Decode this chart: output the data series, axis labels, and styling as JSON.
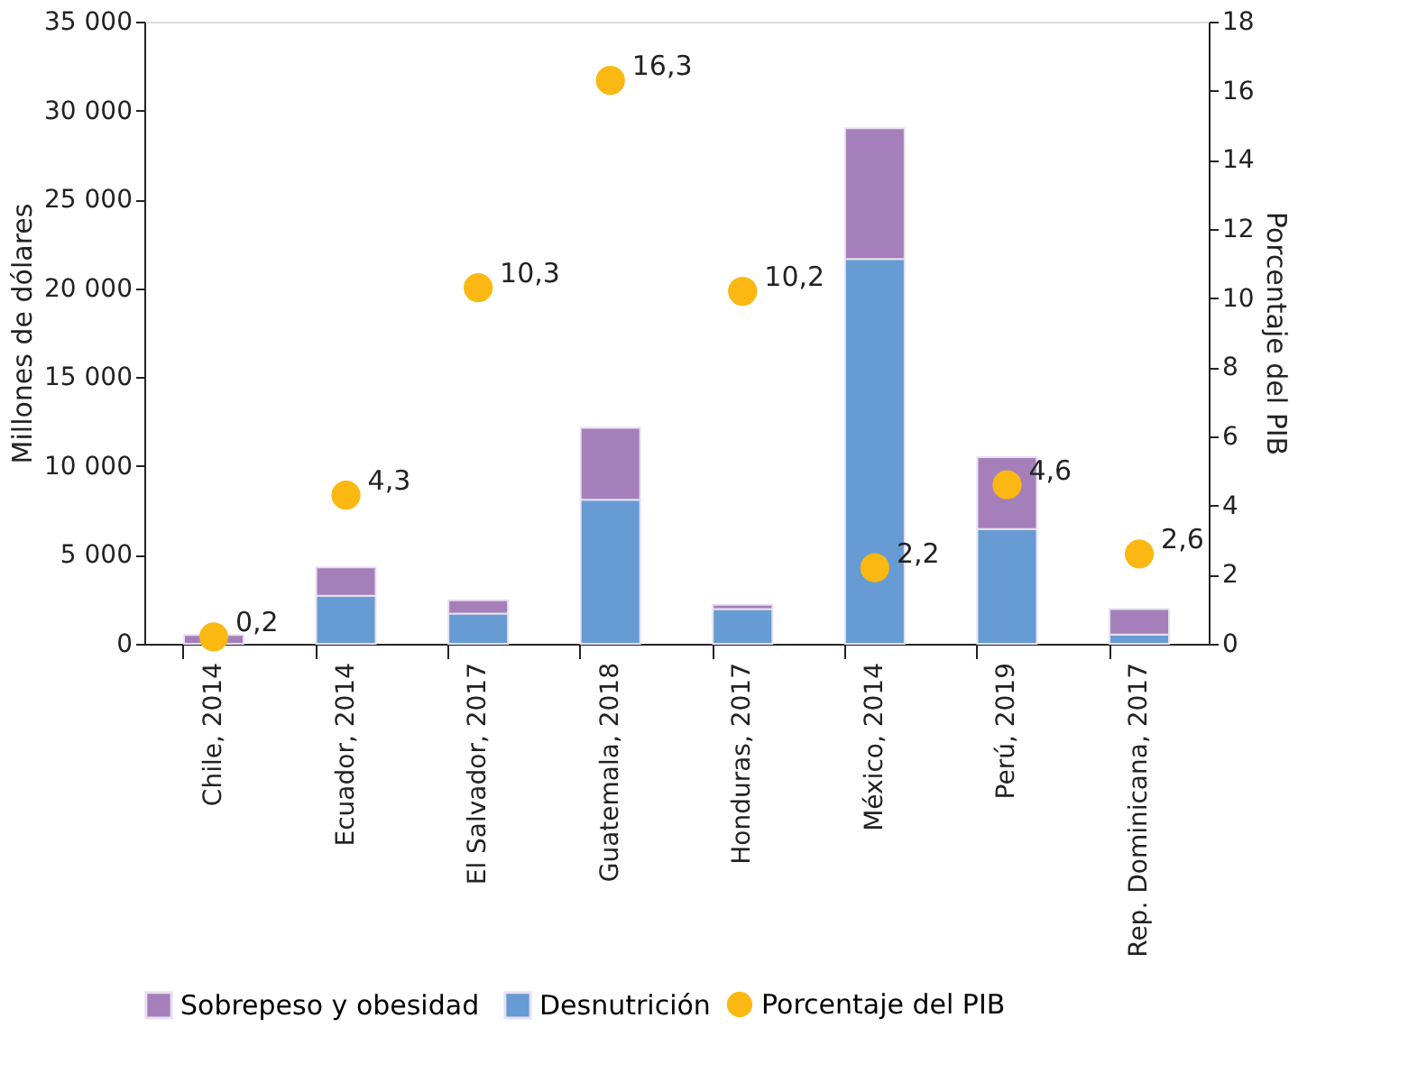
{
  "chart_data": {
    "type": "bar",
    "stacked": true,
    "xlabel": null,
    "ylabel": "Millones de dólares",
    "y2label": "Porcentaje del PIB",
    "categories": [
      "Chile, 2014",
      "Ecuador, 2014",
      "El Salvador, 2017",
      "Guatemala, 2018",
      "Honduras, 2017",
      "México, 2014",
      "Perú, 2019",
      "Rep. Dominicana, 2017"
    ],
    "series": [
      {
        "name": "Desnutrición",
        "color": "#669bd3",
        "values": [
          null,
          2700,
          1700,
          8100,
          1950,
          21650,
          6450,
          520
        ]
      },
      {
        "name": "Sobrepeso y obesidad",
        "color": "#a57fba",
        "values": [
          500,
          1600,
          750,
          4050,
          250,
          7350,
          4050,
          1430
        ]
      },
      {
        "name": "Porcentaje del PIB",
        "type": "scatter",
        "axis": "y2",
        "color": "#fbb812",
        "marker": "circle",
        "values": [
          0.2,
          4.3,
          10.3,
          16.3,
          10.2,
          2.2,
          4.6,
          2.6
        ],
        "value_labels": [
          "0,2",
          "4,3",
          "10,3",
          "16,3",
          "10,2",
          "2,2",
          "4,6",
          "2,6"
        ]
      }
    ],
    "ylim": [
      0,
      35000
    ],
    "yticks": [
      {
        "value": 0,
        "label": "0"
      },
      {
        "value": 5000,
        "label": "5 000"
      },
      {
        "value": 10000,
        "label": "10 000"
      },
      {
        "value": 15000,
        "label": "15 000"
      },
      {
        "value": 20000,
        "label": "20 000"
      },
      {
        "value": 25000,
        "label": "25 000"
      },
      {
        "value": 30000,
        "label": "30 000"
      },
      {
        "value": 35000,
        "label": "35 000"
      }
    ],
    "y2lim": [
      0,
      18
    ],
    "y2ticks": [
      0,
      2,
      4,
      6,
      8,
      10,
      12,
      14,
      16,
      18
    ],
    "grid": false,
    "legend": "bottom"
  }
}
